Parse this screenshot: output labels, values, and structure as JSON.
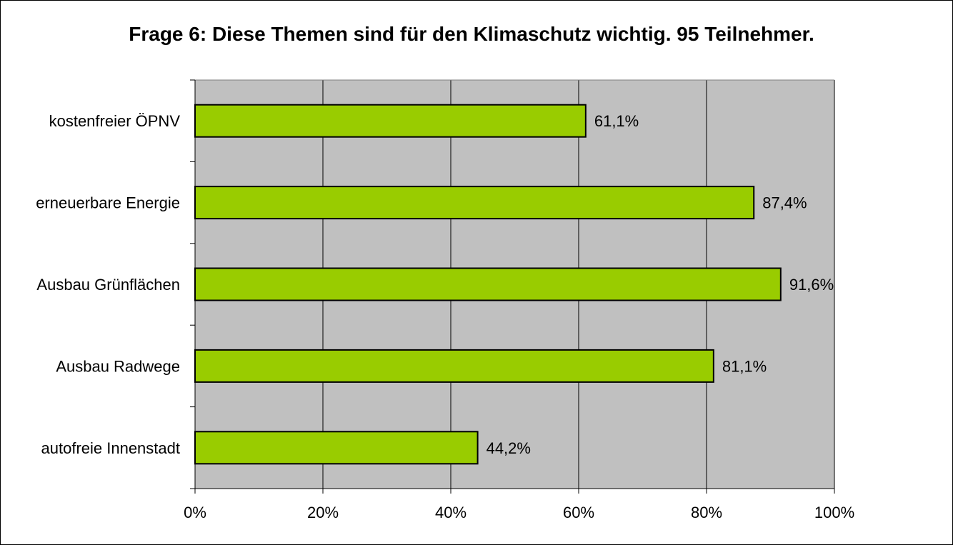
{
  "chart_data": {
    "type": "bar",
    "orientation": "horizontal",
    "title": "Frage 6: Diese Themen sind für den Klimaschutz wichtig. 95 Teilnehmer.",
    "xlabel": "",
    "ylabel": "",
    "categories": [
      "kostenfreier ÖPNV",
      "erneuerbare Energie",
      "Ausbau Grünflächen",
      "Ausbau Radwege",
      "autofreie Innenstadt"
    ],
    "values": [
      61.1,
      87.4,
      91.6,
      81.1,
      44.2
    ],
    "value_labels": [
      "61,1%",
      "87,4%",
      "91,6%",
      "81,1%",
      "44,2%"
    ],
    "xlim": [
      0,
      100
    ],
    "x_ticks": [
      0,
      20,
      40,
      60,
      80,
      100
    ],
    "x_tick_labels": [
      "0%",
      "20%",
      "40%",
      "60%",
      "80%",
      "100%"
    ],
    "grid": true,
    "legend": "none",
    "colors": {
      "bar_fill": "#99CC00",
      "bar_stroke": "#000000",
      "plot_background": "#C0C0C0",
      "gridline": "#000000",
      "page_background": "#FFFFFF"
    }
  }
}
